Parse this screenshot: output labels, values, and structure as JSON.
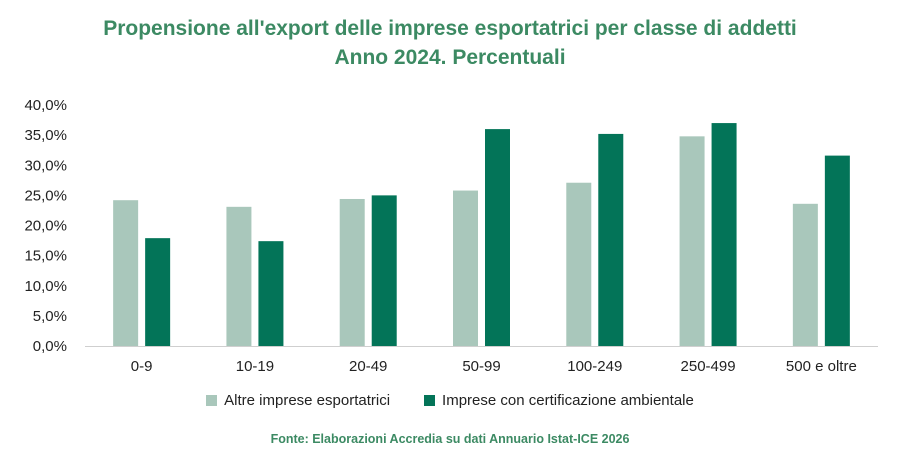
{
  "chart_data": {
    "type": "bar",
    "title": "Propensione all'export delle imprese esportatrici per classe di addetti",
    "subtitle": "Anno 2024. Percentuali",
    "categories": [
      "0-9",
      "10-19",
      "20-49",
      "50-99",
      "100-249",
      "250-499",
      "500 e oltre"
    ],
    "series": [
      {
        "name": "Altre imprese esportatrici",
        "color": "#a9c7bb",
        "values": [
          24.2,
          23.1,
          24.4,
          25.8,
          27.1,
          34.8,
          23.6
        ]
      },
      {
        "name": "Imprese con certificazione ambientale",
        "color": "#037458",
        "values": [
          17.9,
          17.4,
          25.0,
          36.0,
          35.2,
          37.0,
          31.6
        ]
      }
    ],
    "ylim": [
      0,
      40
    ],
    "yticks": [
      "0,0%",
      "5,0%",
      "10,0%",
      "15,0%",
      "20,0%",
      "25,0%",
      "30,0%",
      "35,0%",
      "40,0%"
    ],
    "xlabel": "",
    "ylabel": "",
    "grid": false,
    "legend_position": "bottom"
  },
  "source": "Fonte: Elaborazioni Accredia su dati Annuario Istat-ICE 2026"
}
